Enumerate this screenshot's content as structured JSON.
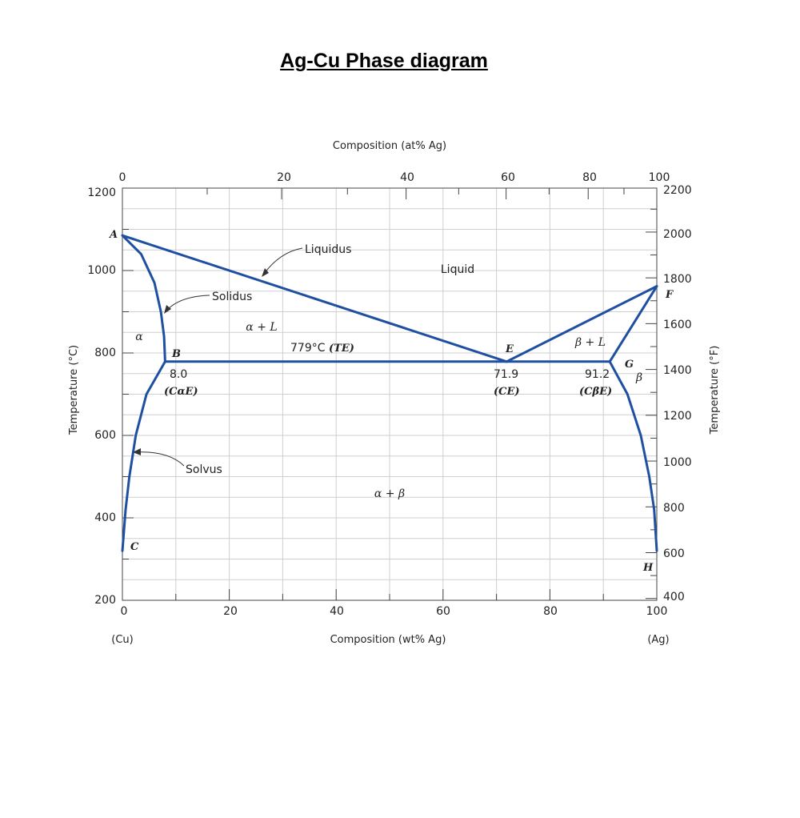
{
  "title": "Ag-Cu Phase diagram",
  "chart_data": {
    "type": "phase-diagram",
    "top_axis": {
      "label": "Composition (at% Ag)",
      "ticks": [
        "0",
        "20",
        "40",
        "60",
        "80",
        "100"
      ]
    },
    "bottom_axis": {
      "label": "Composition (wt% Ag)",
      "ticks": [
        "0",
        "20",
        "40",
        "60",
        "80",
        "100"
      ],
      "left_end": "(Cu)",
      "right_end": "(Ag)"
    },
    "left_axis": {
      "label": "Temperature (°C)",
      "ticks": [
        "1200",
        "1000",
        "800",
        "600",
        "400",
        "200"
      ],
      "ylim": [
        200,
        1200
      ]
    },
    "right_axis": {
      "label": "Temperature (°F)",
      "ticks": [
        "2200",
        "2000",
        "1800",
        "1600",
        "1400",
        "1200",
        "1000",
        "800",
        "600",
        "400"
      ]
    },
    "xlim": [
      0,
      100
    ],
    "grid": true,
    "line_color": "#1f4fa0",
    "lines": {
      "liquidus_left": [
        [
          0,
          1085
        ],
        [
          71.9,
          779
        ]
      ],
      "liquidus_right": [
        [
          71.9,
          779
        ],
        [
          100,
          962
        ]
      ],
      "solidus_alpha": [
        [
          0,
          1085
        ],
        [
          3.5,
          1040
        ],
        [
          6.0,
          970
        ],
        [
          7.2,
          900
        ],
        [
          7.8,
          840
        ],
        [
          8.0,
          779
        ]
      ],
      "eutectic_isotherm": [
        [
          8.0,
          779
        ],
        [
          91.2,
          779
        ]
      ],
      "solvus_alpha": [
        [
          8.0,
          779
        ],
        [
          4.5,
          700
        ],
        [
          2.5,
          600
        ],
        [
          1.3,
          500
        ],
        [
          0.6,
          420
        ],
        [
          0,
          320
        ]
      ],
      "solidus_beta": [
        [
          91.2,
          779
        ],
        [
          100,
          962
        ]
      ],
      "solvus_beta": [
        [
          91.2,
          779
        ],
        [
          94.5,
          700
        ],
        [
          97.0,
          600
        ],
        [
          98.6,
          500
        ],
        [
          99.5,
          420
        ],
        [
          100,
          320
        ]
      ]
    },
    "points": [
      {
        "name": "A",
        "x": 0,
        "y": 1085
      },
      {
        "name": "B",
        "x": 8.0,
        "y": 779
      },
      {
        "name": "C",
        "x": 0,
        "y": 320
      },
      {
        "name": "E",
        "x": 71.9,
        "y": 779
      },
      {
        "name": "F",
        "x": 100,
        "y": 962
      },
      {
        "name": "G",
        "x": 91.2,
        "y": 779
      },
      {
        "name": "H",
        "x": 100,
        "y": 320
      }
    ],
    "regions": {
      "liquid": "Liquid",
      "alpha": "α",
      "alpha_l": "α + L",
      "beta_l": "β + L",
      "beta": "β",
      "alpha_beta": "α + β"
    },
    "annotations": {
      "liquidus": "Liquidus",
      "solidus": "Solidus",
      "solvus": "Solvus",
      "eutectic_temp": "779°C",
      "eutectic_temp_sym": "(TE)",
      "b_value": "8.0",
      "b_sym": "(CαE)",
      "e_value": "71.9",
      "e_sym": "(CE)",
      "g_value": "91.2",
      "g_sym": "(CβE)"
    }
  }
}
